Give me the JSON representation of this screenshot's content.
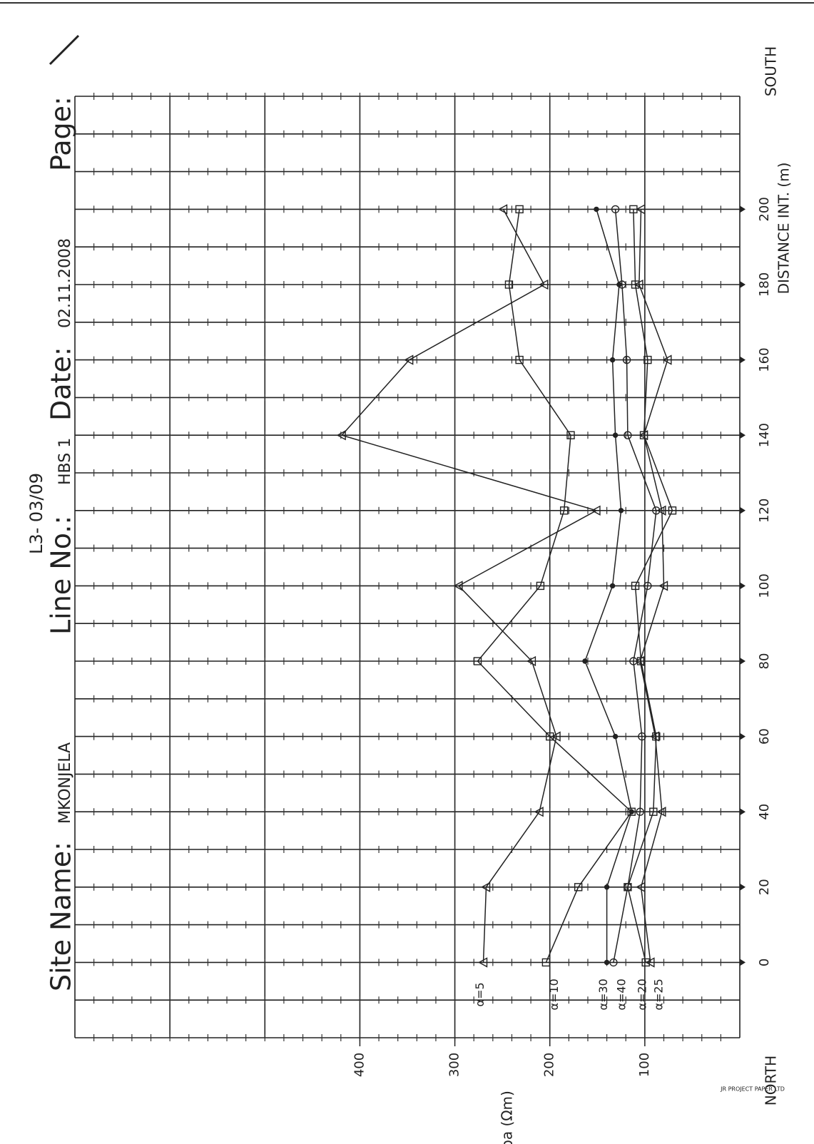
{
  "chart_data": {
    "type": "line",
    "page_mark": "L3- 03/09",
    "fields": {
      "site_label": "Site Name:",
      "site": "MKONJELA",
      "line_label": "Line No.:",
      "line": "HBS 1",
      "date_label": "Date:",
      "date": "02.11.2008",
      "page_label": "Page:"
    },
    "x_label": "DISTANCE INT. (m)",
    "x_end_top": "SOUTH",
    "x_end_bottom": "NORTH",
    "y_label": "ρa (Ωm)",
    "paper_brand": "JR PROJECT PAPER LTD",
    "x": [
      0,
      20,
      40,
      60,
      80,
      100,
      120,
      140,
      160,
      180,
      200
    ],
    "xlim": [
      -20,
      230
    ],
    "xticks": [
      0,
      20,
      40,
      60,
      80,
      100,
      120,
      140,
      160,
      180,
      200
    ],
    "ylim": [
      0,
      700
    ],
    "yticks": [
      100,
      200,
      300,
      400
    ],
    "series": [
      {
        "name": "α=5",
        "marker": "triangle",
        "color": "#222",
        "values": [
          270,
          267,
          211,
          193,
          219,
          296,
          151,
          419,
          348,
          206,
          249
        ]
      },
      {
        "name": "α=10",
        "marker": "square",
        "color": "#222",
        "values": [
          204,
          170,
          114,
          200,
          276,
          210,
          185,
          178,
          232,
          243,
          232
        ]
      },
      {
        "name": "α=30",
        "marker": "dot",
        "color": "#222",
        "values": [
          140,
          140,
          114,
          131,
          163,
          134,
          125,
          131,
          134,
          127,
          151
        ]
      },
      {
        "name": "α=40",
        "marker": "circle",
        "color": "#222",
        "values": [
          133,
          118,
          105,
          103,
          112,
          97,
          88,
          118,
          119,
          124,
          131
        ]
      },
      {
        "name": "α=20",
        "marker": "square",
        "color": "#222",
        "values": [
          99,
          118,
          91,
          88,
          104,
          110,
          71,
          101,
          97,
          110,
          112
        ]
      },
      {
        "name": "α=25",
        "marker": "triangle",
        "color": "#222",
        "values": [
          94,
          104,
          82,
          89,
          105,
          80,
          82,
          101,
          76,
          106,
          104
        ]
      }
    ]
  }
}
